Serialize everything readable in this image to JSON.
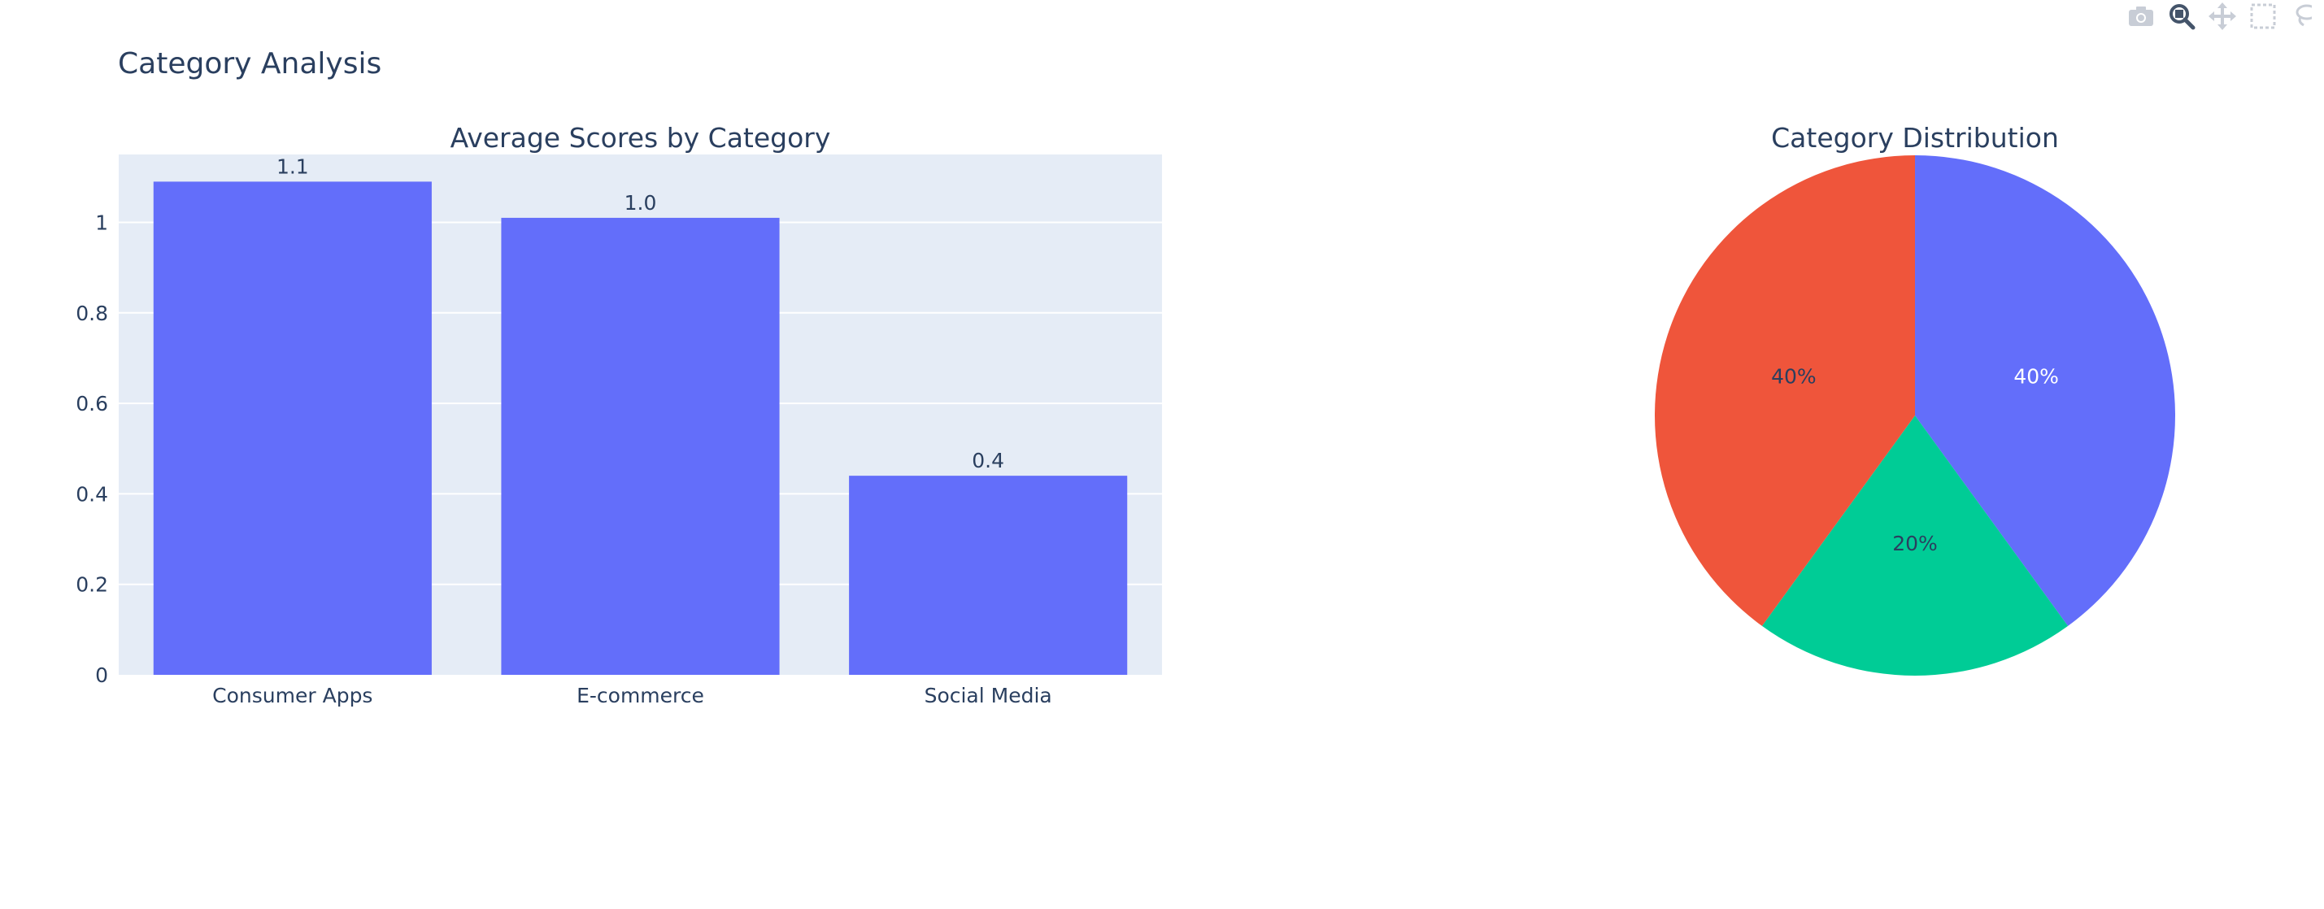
{
  "page": {
    "title": "Category Analysis"
  },
  "modebar": {
    "icons": [
      "camera-icon",
      "zoom-icon",
      "pan-icon",
      "box-select-icon",
      "lasso-icon"
    ],
    "active": "zoom-icon"
  },
  "colors": {
    "bar": "#636efa",
    "plot_bg": "#e5ecf6",
    "grid": "#ffffff",
    "text": "#2a3f5f"
  },
  "chart_data": [
    {
      "type": "bar",
      "title": "Average Scores by Category",
      "categories": [
        "Consumer Apps",
        "E-commerce",
        "Social Media"
      ],
      "values": [
        1.09,
        1.01,
        0.44
      ],
      "data_labels": [
        "1.1",
        "1.0",
        "0.4"
      ],
      "ylim": [
        0,
        1.15
      ],
      "yticks": [
        "0",
        "0.2",
        "0.4",
        "0.6",
        "0.8",
        "1"
      ],
      "grid": true,
      "xlabel": "",
      "ylabel": ""
    },
    {
      "type": "pie",
      "title": "Category Distribution",
      "slices": [
        {
          "value": 40,
          "label": "40%",
          "color": "#636efa",
          "text_color": "#ffffff"
        },
        {
          "value": 20,
          "label": "20%",
          "color": "#00cc96",
          "text_color": "#2a3f5f"
        },
        {
          "value": 40,
          "label": "40%",
          "color": "#ef553b",
          "text_color": "#2a3f5f"
        }
      ]
    }
  ]
}
